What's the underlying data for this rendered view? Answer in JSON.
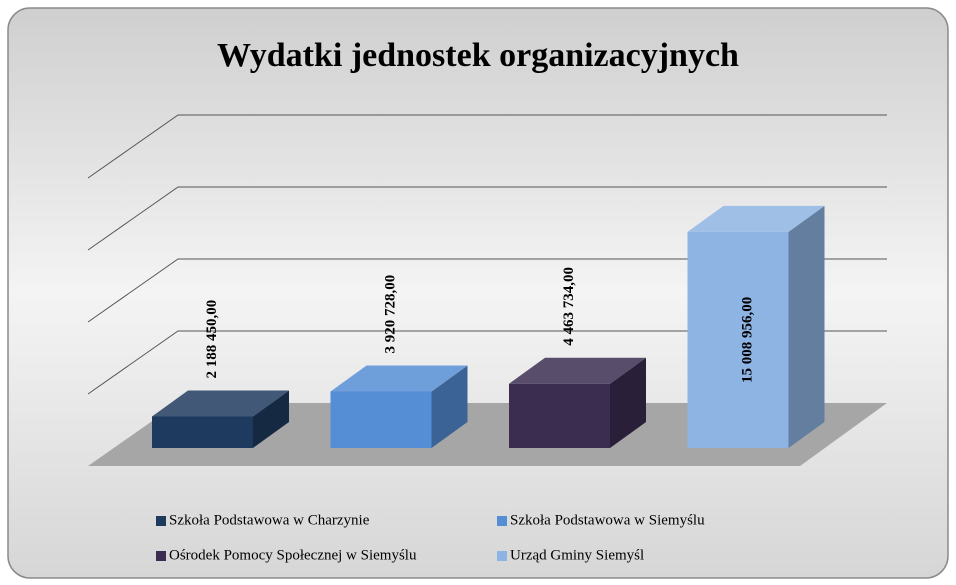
{
  "chart_data": {
    "type": "bar",
    "title": "Wydatki jednostek organizacyjnych",
    "categories": [
      "Szkoła Podstawowa w Charzynie",
      "Szkoła Podstawowa w Siemyślu",
      "Ośrodek Pomocy Społecznej w Siemyślu",
      "Urząd Gminy Siemyśl"
    ],
    "values": [
      2188450,
      3920728,
      4463734,
      15008956
    ],
    "value_labels": [
      "2 188 450,00",
      "3 920 728,00",
      "4 463 734,00",
      "15 008 956,00"
    ],
    "colors": [
      "#1f3a5f",
      "#558ed5",
      "#3b2d50",
      "#8eb4e3"
    ],
    "ylim": [
      0,
      20000000
    ],
    "yticks": [
      0,
      5000000,
      10000000,
      15000000,
      20000000
    ],
    "grid": true,
    "legend": "bottom"
  }
}
